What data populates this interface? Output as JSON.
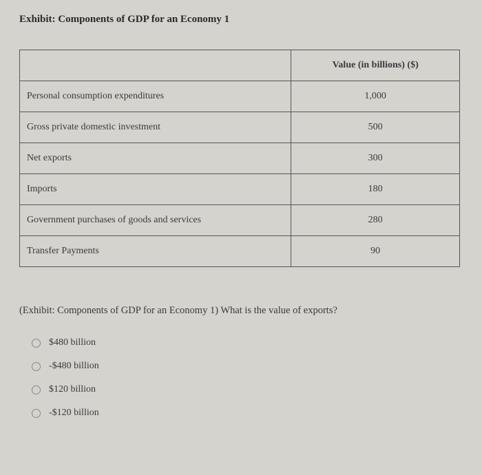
{
  "exhibit_title": "Exhibit: Components of GDP for an Economy 1",
  "table": {
    "header_label": "",
    "header_value": "Value (in billions) ($)",
    "rows": [
      {
        "label": "Personal consumption expenditures",
        "value": "1,000"
      },
      {
        "label": "Gross private domestic investment",
        "value": "500"
      },
      {
        "label": "Net exports",
        "value": "300"
      },
      {
        "label": "Imports",
        "value": "180"
      },
      {
        "label": "Government purchases of goods and services",
        "value": "280"
      },
      {
        "label": "Transfer Payments",
        "value": "90"
      }
    ],
    "border_color": "#555555",
    "background_color": "#d5d3ce",
    "text_color": "#3a3a3a",
    "font_size": 14,
    "label_col_width": 395,
    "value_col_width": 245
  },
  "question": "(Exhibit: Components of GDP for an Economy 1) What is the value of exports?",
  "options": [
    "$480 billion",
    "-$480 billion",
    "$120 billion",
    "-$120 billion"
  ],
  "styling": {
    "page_background": "#d5d3ce",
    "font_family": "Georgia, Times New Roman, serif",
    "title_fontsize": 15,
    "body_fontsize": 14,
    "radio_border_color": "#888888"
  }
}
